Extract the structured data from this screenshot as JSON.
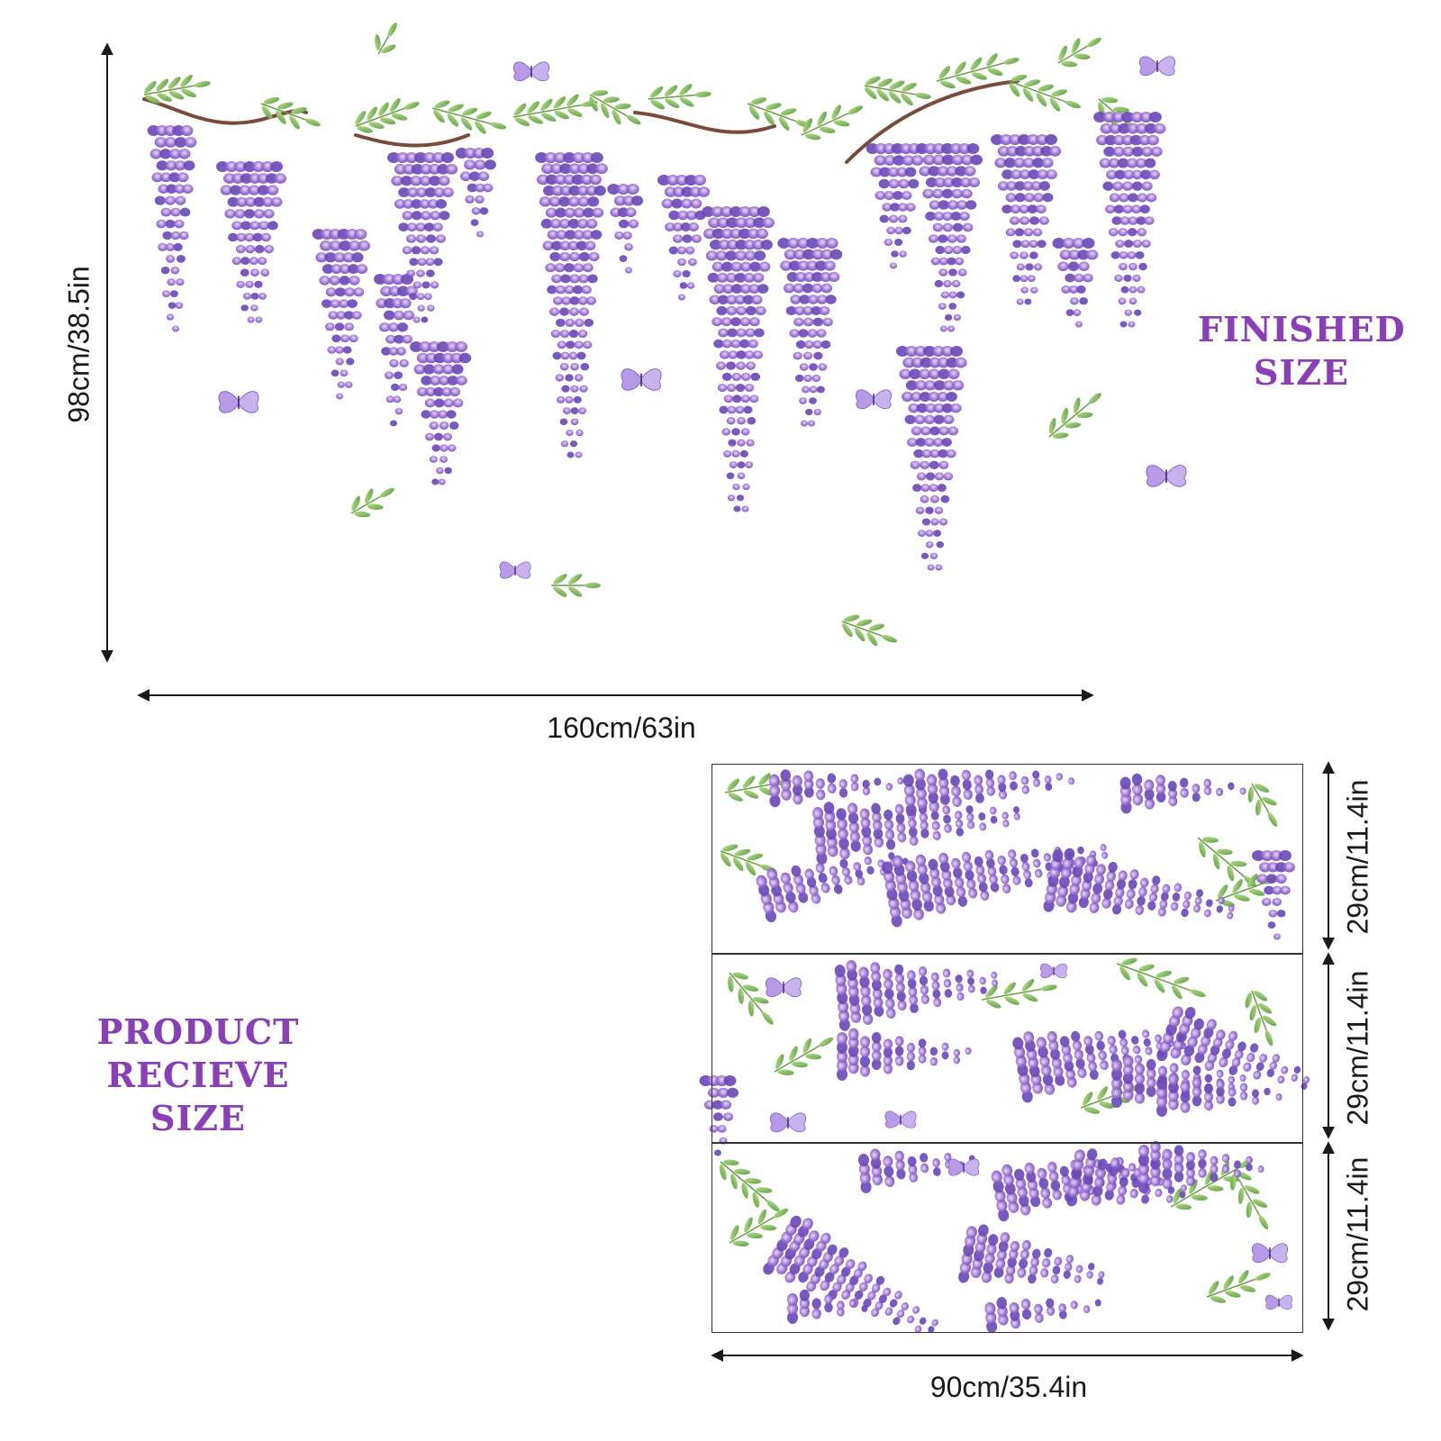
{
  "finished": {
    "title_line1": "FINISHED",
    "title_line2": "SIZE",
    "height_label": "98cm/38.5in",
    "width_label": "160cm/63in"
  },
  "product": {
    "title_line1": "PRODUCT",
    "title_line2": "RECIEVE SIZE",
    "sheet_height_label_1": "29cm/11.4in",
    "sheet_height_label_2": "29cm/11.4in",
    "sheet_height_label_3": "29cm/11.4in",
    "width_label": "90cm/35.4in"
  },
  "colors": {
    "accent": "#8a3fb6",
    "flower": "#9a6fd0",
    "flower_dark": "#6d4bb8",
    "leaf": "#7bb661",
    "stem": "#7a4a3a",
    "line": "#1a1a1a"
  }
}
